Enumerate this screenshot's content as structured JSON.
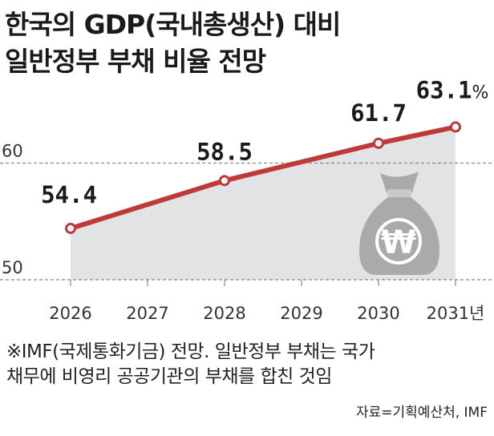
{
  "title": {
    "line1": "한국의 GDP(국내총생산) 대비",
    "line2": "일반정부 부채 비율 전망"
  },
  "chart_data": {
    "type": "area",
    "x": [
      "2026",
      "2027",
      "2028",
      "2029",
      "2030",
      "2031"
    ],
    "x_tick_labels": [
      "2026",
      "2027",
      "2028",
      "2029",
      "2030",
      "2031년"
    ],
    "points": [
      {
        "x": "2026",
        "y": 54.4,
        "label": "54.4"
      },
      {
        "x": "2028",
        "y": 58.5,
        "label": "58.5"
      },
      {
        "x": "2030",
        "y": 61.7,
        "label": "61.7"
      },
      {
        "x": "2031",
        "y": 63.1,
        "label": "63.1",
        "unit": "%"
      }
    ],
    "y_ticks": [
      50,
      60
    ],
    "y_tick_labels": [
      "50",
      "60"
    ],
    "ylim": [
      50,
      65
    ],
    "grid": "dashed horizontal at 50 and 60",
    "colors": {
      "line": "#c0393a",
      "area": "#e2e3e5",
      "grid": "#888888",
      "icon": "#aaaaaa"
    },
    "icon": "money-bag-won-icon",
    "icon_symbol": "₩"
  },
  "note": {
    "line1": "※IMF(국제통화기금) 전망. 일반정부 부채는 국가",
    "line2": "채무에 비영리 공공기관의 부채를 합친 것임"
  },
  "source": "자료=기획예산처, IMF"
}
